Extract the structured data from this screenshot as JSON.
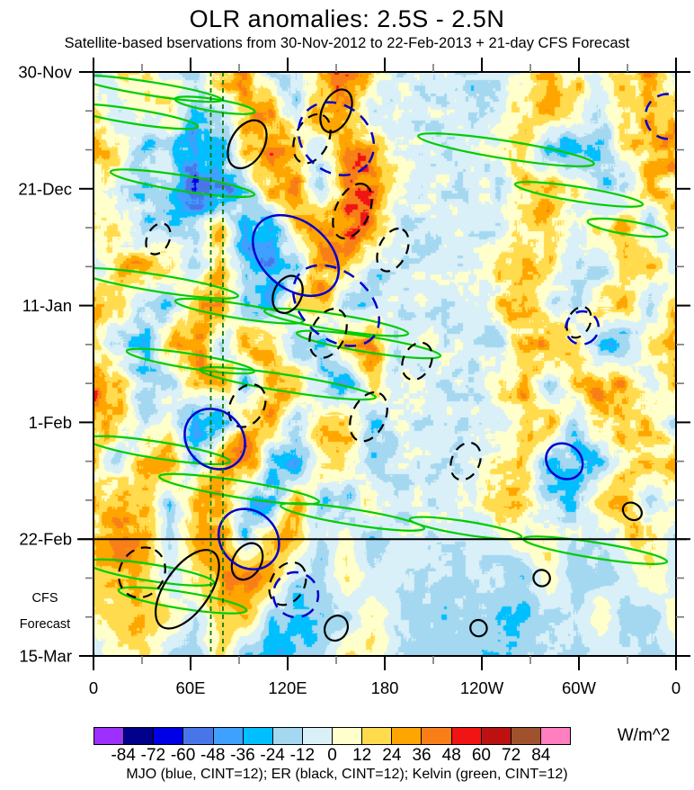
{
  "title": "OLR anomalies: 2.5S - 2.5N",
  "subtitle": "Satellite-based bservations from 30-Nov-2012 to 22-Feb-2013 + 21-day CFS Forecast",
  "legend": "MJO (blue, CINT=12); ER (black, CINT=12); Kelvin (green, CINT=12)",
  "forecast_note": {
    "line1": "CFS",
    "line2": "Forecast"
  },
  "colorbar": {
    "units": "W/m^2",
    "levels": [
      -84,
      -72,
      -60,
      -48,
      -36,
      -24,
      -12,
      0,
      12,
      24,
      36,
      48,
      60,
      72,
      84
    ],
    "colors": [
      "#9b30ff",
      "#00008b",
      "#0000e6",
      "#4876e8",
      "#3ea0ff",
      "#00bfff",
      "#a4d7f0",
      "#d9f0f8",
      "#ffffcc",
      "#ffdb4d",
      "#ffa500",
      "#f87f17",
      "#f01414",
      "#bb1111",
      "#a0522d",
      "#ff7fbf"
    ],
    "stipple_segment_index": 14
  },
  "chart_data": {
    "type": "heatmap",
    "description": "Hovmoller diagram (longitude vs time) of OLR anomalies averaged 2.5S-2.5N, observations 30-Nov-2012 to 22-Feb-2013 plus 21-day CFS forecast",
    "x_axis": {
      "min_deg": 0,
      "max_deg": 360,
      "major_step_deg": 60,
      "minor_step_deg": 30,
      "tick_labels": [
        "0",
        "60E",
        "120E",
        "180",
        "120W",
        "60W",
        "0"
      ]
    },
    "y_axis": {
      "total_days": 105,
      "major_step_days": 21,
      "minor_step_days": 7,
      "tick_labels": [
        "30-Nov",
        "21-Dec",
        "11-Jan",
        "1-Feb",
        "22-Feb",
        "15-Mar"
      ]
    },
    "forecast_start_day": 84,
    "forecast_divider_label": "22-Feb",
    "reference_longitudes_deg": [
      72.5,
      80
    ],
    "contour_interval_wm2": 12,
    "grid_units": "W/m^2",
    "grid_cols_deg_step": 15,
    "grid": [
      [
        -15,
        8,
        5,
        -5,
        -18,
        30,
        35,
        -15,
        -20,
        25,
        45,
        25,
        -5,
        -10,
        -5,
        -12,
        -10,
        12,
        30,
        15,
        8,
        18,
        30,
        -8
      ],
      [
        20,
        -15,
        10,
        12,
        -25,
        -15,
        20,
        30,
        -10,
        40,
        20,
        -20,
        -5,
        -5,
        -8,
        -10,
        -5,
        8,
        25,
        20,
        -10,
        15,
        25,
        20
      ],
      [
        25,
        15,
        -20,
        -10,
        -45,
        -30,
        25,
        35,
        15,
        -15,
        45,
        40,
        5,
        -5,
        -8,
        -5,
        5,
        20,
        -35,
        -30,
        -18,
        10,
        28,
        30
      ],
      [
        15,
        -10,
        -25,
        -15,
        -60,
        -40,
        -20,
        30,
        40,
        -20,
        35,
        45,
        10,
        -5,
        -5,
        -8,
        -10,
        15,
        25,
        20,
        -15,
        -20,
        15,
        20
      ],
      [
        20,
        10,
        -20,
        -15,
        -10,
        25,
        -30,
        -35,
        20,
        30,
        45,
        35,
        -10,
        -8,
        -5,
        -5,
        -12,
        8,
        20,
        -10,
        15,
        25,
        -15,
        10
      ],
      [
        -15,
        20,
        30,
        10,
        -20,
        25,
        -25,
        -40,
        -20,
        35,
        25,
        -15,
        -5,
        -10,
        -5,
        -8,
        10,
        25,
        15,
        -10,
        -20,
        15,
        20,
        -10
      ],
      [
        25,
        15,
        -10,
        -20,
        30,
        45,
        -25,
        -30,
        25,
        30,
        -20,
        -15,
        -8,
        -5,
        -10,
        -5,
        15,
        30,
        -10,
        -15,
        20,
        25,
        -15,
        20
      ],
      [
        15,
        -20,
        -25,
        20,
        35,
        -15,
        30,
        20,
        -25,
        -30,
        25,
        35,
        -10,
        -5,
        -5,
        -8,
        -15,
        20,
        30,
        15,
        -25,
        -30,
        10,
        15
      ],
      [
        40,
        25,
        -20,
        -15,
        25,
        30,
        -20,
        30,
        25,
        -15,
        -30,
        20,
        -8,
        -5,
        -10,
        -5,
        10,
        25,
        -15,
        20,
        30,
        25,
        -10,
        20
      ],
      [
        35,
        20,
        -15,
        10,
        -45,
        -35,
        20,
        30,
        -20,
        25,
        30,
        -25,
        -5,
        -8,
        -5,
        -10,
        -12,
        15,
        25,
        -15,
        20,
        30,
        15,
        -10
      ],
      [
        20,
        -15,
        25,
        30,
        -20,
        35,
        45,
        -20,
        -35,
        25,
        20,
        -15,
        -8,
        -5,
        -5,
        -8,
        15,
        20,
        -20,
        -30,
        -25,
        15,
        25,
        20
      ],
      [
        15,
        30,
        20,
        -15,
        40,
        30,
        -25,
        -30,
        20,
        -15,
        -20,
        15,
        -5,
        -8,
        -10,
        -5,
        20,
        15,
        -15,
        -25,
        18,
        22,
        -10,
        15
      ],
      [
        20,
        50,
        35,
        -10,
        30,
        35,
        -20,
        25,
        30,
        -15,
        10,
        -20,
        -10,
        -5,
        -8,
        -10,
        -5,
        10,
        15,
        -18,
        -10,
        12,
        18,
        -8
      ],
      [
        15,
        25,
        20,
        -12,
        15,
        30,
        45,
        25,
        -15,
        -20,
        15,
        -10,
        -8,
        -12,
        -15,
        -10,
        -15,
        -20,
        12,
        -15,
        -18,
        -12,
        15,
        -10
      ],
      [
        10,
        18,
        25,
        15,
        -10,
        20,
        30,
        -20,
        -30,
        -25,
        -15,
        10,
        -10,
        -15,
        -20,
        -12,
        -18,
        -25,
        -15,
        -10,
        12,
        -15,
        -20,
        10
      ],
      [
        -10,
        12,
        15,
        -15,
        -20,
        15,
        -25,
        -35,
        -20,
        -15,
        12,
        15,
        -12,
        -18,
        -15,
        -20,
        -25,
        -18,
        -12,
        -15,
        -10,
        -12,
        -15,
        -8
      ]
    ],
    "overlays": {
      "mjo": {
        "color": "#0000cd",
        "ellipses": [
          [
            125,
            33,
            30,
            6,
            40,
            0
          ],
          [
            150,
            12,
            25,
            6,
            40,
            1
          ],
          [
            355,
            8,
            14,
            4,
            40,
            1
          ],
          [
            150,
            42,
            30,
            6,
            40,
            1
          ],
          [
            75,
            66,
            20,
            5,
            45,
            0
          ],
          [
            96,
            84,
            20,
            5,
            45,
            0
          ],
          [
            125,
            94,
            14,
            4,
            45,
            1
          ],
          [
            302,
            46,
            10,
            3,
            40,
            1
          ],
          [
            291,
            70,
            12,
            3,
            40,
            0
          ]
        ]
      },
      "er": {
        "color": "#000000",
        "ellipses": [
          [
            150,
            7,
            14,
            2.5,
            -65,
            0
          ],
          [
            135,
            12,
            16,
            3,
            -65,
            1
          ],
          [
            95,
            13,
            16,
            3,
            -60,
            0
          ],
          [
            40,
            30,
            10,
            2,
            -65,
            1
          ],
          [
            160,
            25,
            18,
            3,
            -65,
            1
          ],
          [
            185,
            32,
            14,
            2.5,
            -65,
            1
          ],
          [
            120,
            40,
            12,
            2.5,
            -65,
            0
          ],
          [
            145,
            47,
            16,
            3,
            -65,
            1
          ],
          [
            200,
            52,
            12,
            2.5,
            -65,
            1
          ],
          [
            300,
            45,
            10,
            2,
            -65,
            1
          ],
          [
            95,
            60,
            14,
            3,
            -60,
            1
          ],
          [
            170,
            62,
            16,
            3,
            -65,
            1
          ],
          [
            230,
            70,
            12,
            2.5,
            -65,
            1
          ],
          [
            30,
            90,
            16,
            4,
            -60,
            1
          ],
          [
            58,
            93,
            28,
            4,
            -55,
            0
          ],
          [
            95,
            88,
            12,
            2.5,
            -60,
            0
          ],
          [
            120,
            92,
            14,
            3,
            -60,
            1
          ],
          [
            277,
            91,
            5,
            1.5,
            -55,
            0
          ],
          [
            238,
            100,
            5,
            1.5,
            -55,
            0
          ],
          [
            333,
            79,
            5,
            1.8,
            -55,
            0
          ],
          [
            150,
            100,
            8,
            2,
            -60,
            0
          ]
        ]
      },
      "kelvin": {
        "color": "#00cc00",
        "ellipses": [
          [
            35,
            3,
            45,
            1.2,
            9,
            0
          ],
          [
            25,
            8,
            40,
            1.3,
            9,
            0
          ],
          [
            75,
            6,
            25,
            1.1,
            9,
            0
          ],
          [
            55,
            20,
            45,
            1.4,
            9,
            0
          ],
          [
            255,
            14,
            55,
            1.6,
            9,
            0
          ],
          [
            300,
            22,
            40,
            1.3,
            9,
            0
          ],
          [
            330,
            28,
            25,
            1.2,
            9,
            0
          ],
          [
            40,
            38,
            50,
            1.5,
            9,
            0
          ],
          [
            90,
            43,
            40,
            1.3,
            9,
            0
          ],
          [
            150,
            45,
            45,
            1.4,
            9,
            0
          ],
          [
            170,
            49,
            45,
            1.4,
            9,
            0
          ],
          [
            60,
            52,
            40,
            1.3,
            9,
            0
          ],
          [
            120,
            56,
            55,
            1.5,
            9,
            0
          ],
          [
            40,
            68,
            45,
            1.5,
            9,
            0
          ],
          [
            90,
            75,
            50,
            1.5,
            9,
            0
          ],
          [
            160,
            80,
            45,
            1.4,
            9,
            0
          ],
          [
            230,
            82,
            35,
            1.2,
            9,
            0
          ],
          [
            310,
            86,
            45,
            1.4,
            9,
            0
          ],
          [
            35,
            90,
            40,
            1.5,
            9,
            0
          ],
          [
            55,
            95,
            40,
            1.5,
            9,
            0
          ]
        ]
      }
    }
  }
}
